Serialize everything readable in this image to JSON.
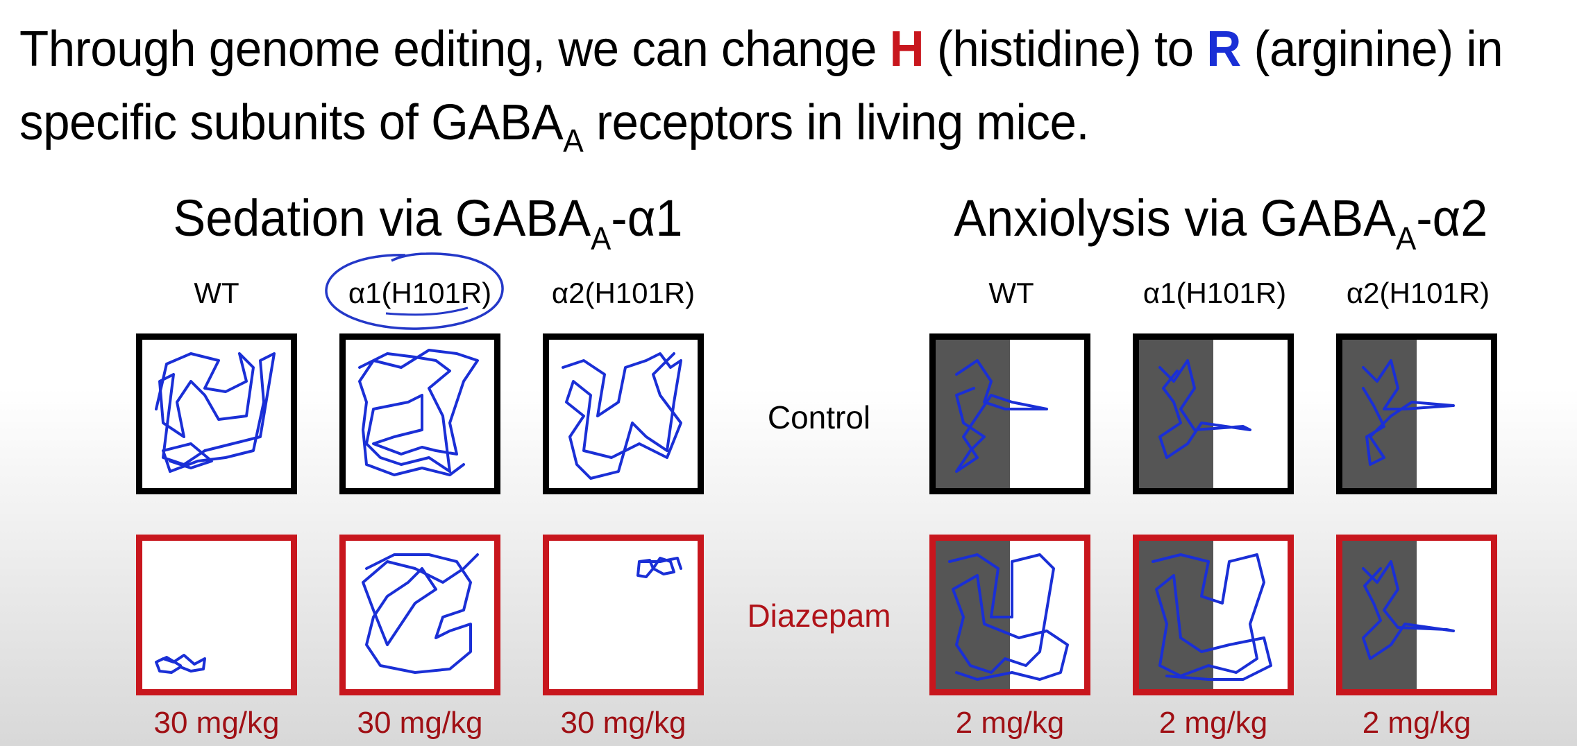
{
  "headline": {
    "line1_prefix": "Through genome editing, we can change ",
    "h_letter": "H",
    "h_word": " (histidine) to ",
    "r_letter": "R",
    "r_word": " (arginine) in",
    "line2_prefix": "specific subunits of GABA",
    "line2_sub": "A",
    "line2_suffix": " receptors in living mice."
  },
  "sedation": {
    "title_prefix": "Sedation via GABA",
    "title_sub": "A",
    "title_suffix": "-α1",
    "columns": [
      "WT",
      "α1(H101R)",
      "α2(H101R)"
    ],
    "doses": [
      "30 mg/kg",
      "30 mg/kg",
      "30 mg/kg"
    ]
  },
  "anxiolysis": {
    "title_prefix": "Anxiolysis via GABA",
    "title_sub": "A",
    "title_suffix": "-α2",
    "columns": [
      "WT",
      "α1(H101R)",
      "α2(H101R)"
    ],
    "doses": [
      "2 mg/kg",
      "2 mg/kg",
      "2 mg/kg"
    ]
  },
  "rows": {
    "control_label": "Control",
    "drug_label": "Diazepam"
  },
  "colors": {
    "trace": "#1a2fd6",
    "control_border": "#000000",
    "drug_border": "#c8161d",
    "highlight_h": "#c8161d",
    "highlight_r": "#1a2fd6",
    "dark_zone": "#555555"
  }
}
